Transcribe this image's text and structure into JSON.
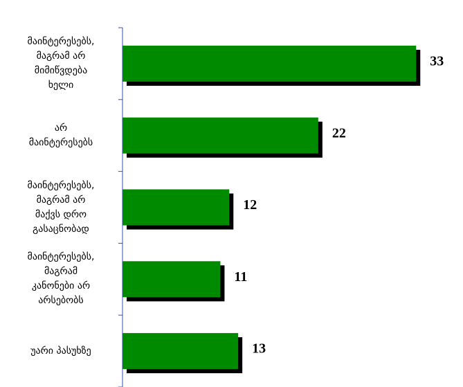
{
  "chart_data": {
    "type": "bar",
    "orientation": "horizontal",
    "categories": [
      "მაინტერესებს,\nმაგრამ არ\nმიმიწვდება\nხელი",
      "არ\nმაინტერესებს",
      "მაინტერესებს,\nმაგრამ არ\nმაქვს დრო\nგასაცნობად",
      "მაინტერესებს,\nმაგრამ\nკანონები არ\nარსებობს",
      "უარი პასუხზე"
    ],
    "values": [
      33,
      22,
      12,
      11,
      13
    ],
    "color": "#008a00",
    "shadow_color": "#000000",
    "xlim": [
      0,
      35
    ]
  }
}
